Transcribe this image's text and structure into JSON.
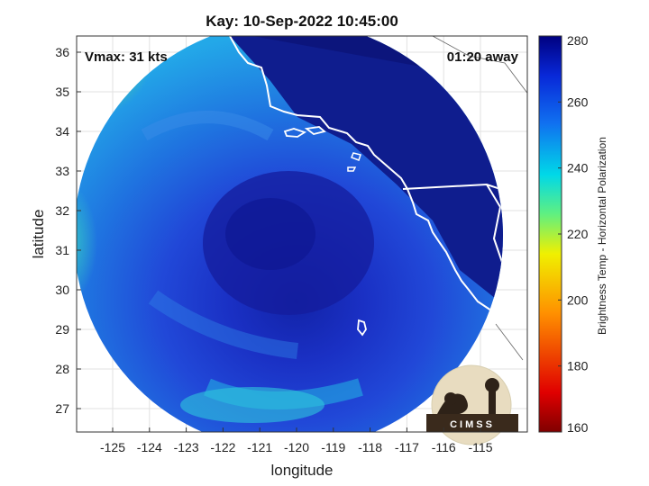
{
  "title": "Kay: 10-Sep-2022 10:45:00",
  "vmax_label": "Vmax: 31 kts",
  "time_away_label": "01:20 away",
  "xlabel": "longitude",
  "ylabel": "latitude",
  "x_ticks": [
    "-125",
    "-124",
    "-123",
    "-122",
    "-121",
    "-120",
    "-119",
    "-118",
    "-117",
    "-116",
    "-115"
  ],
  "y_ticks": [
    "27",
    "28",
    "29",
    "30",
    "31",
    "32",
    "33",
    "34",
    "35",
    "36"
  ],
  "colorbar": {
    "title": "Brightness Temp - Horizontal Polarization",
    "ticks": [
      "160",
      "180",
      "200",
      "220",
      "240",
      "260",
      "280"
    ],
    "min": 160,
    "max": 280
  },
  "logo_text": "CIMSS",
  "colors": {
    "storm_core": "#1f2fc0",
    "outer_ring": "#1a6ee0",
    "north_land": "#101c8c",
    "west_edge": "#4bd890",
    "coastline": "#ffffff"
  }
}
